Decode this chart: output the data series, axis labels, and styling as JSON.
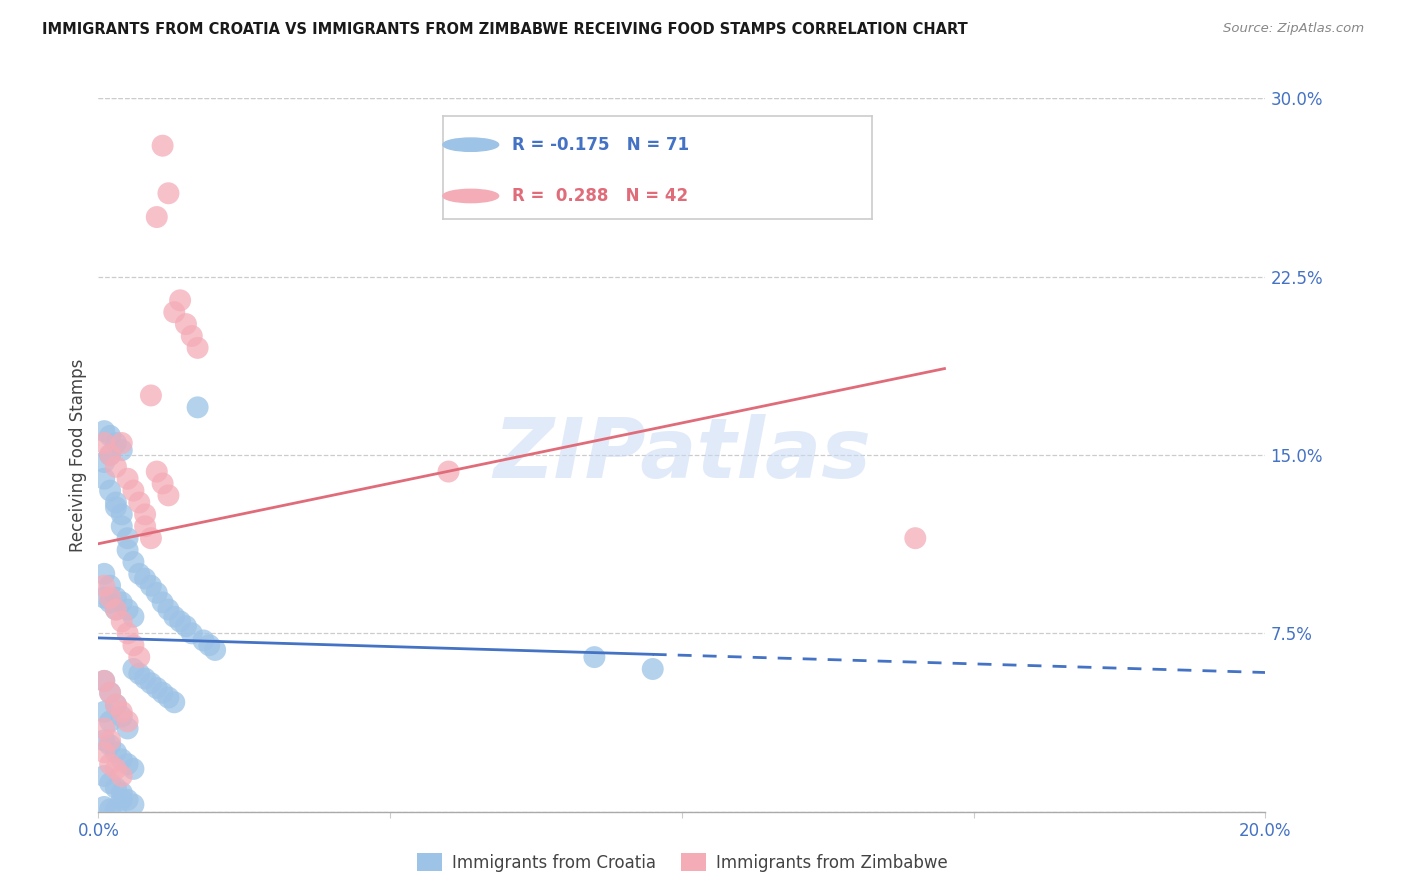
{
  "title": "IMMIGRANTS FROM CROATIA VS IMMIGRANTS FROM ZIMBABWE RECEIVING FOOD STAMPS CORRELATION CHART",
  "source": "Source: ZipAtlas.com",
  "ylabel": "Receiving Food Stamps",
  "xlim": [
    0.0,
    0.2
  ],
  "ylim": [
    0.0,
    0.3
  ],
  "xticks": [
    0.0,
    0.05,
    0.1,
    0.15,
    0.2
  ],
  "yticks": [
    0.0,
    0.075,
    0.15,
    0.225,
    0.3
  ],
  "ytick_labels": [
    "",
    "7.5%",
    "15.0%",
    "22.5%",
    "30.0%"
  ],
  "xtick_labels": [
    "0.0%",
    "",
    "",
    "",
    "20.0%"
  ],
  "legend_label1": "Immigrants from Croatia",
  "legend_label2": "Immigrants from Zimbabwe",
  "r_croatia": -0.175,
  "n_croatia": 71,
  "r_zimbabwe": 0.288,
  "n_zimbabwe": 42,
  "axis_color": "#4472c4",
  "croatia_color": "#9dc3e6",
  "zimbabwe_color": "#f4acb7",
  "croatia_line_color": "#4472c4",
  "zimbabwe_line_color": "#e06c7a",
  "watermark": "ZIPatlas",
  "croatia_points": [
    [
      0.001,
      0.147
    ],
    [
      0.002,
      0.15
    ],
    [
      0.003,
      0.128
    ],
    [
      0.004,
      0.12
    ],
    [
      0.005,
      0.11
    ],
    [
      0.006,
      0.105
    ],
    [
      0.007,
      0.1
    ],
    [
      0.008,
      0.098
    ],
    [
      0.009,
      0.095
    ],
    [
      0.01,
      0.092
    ],
    [
      0.011,
      0.088
    ],
    [
      0.012,
      0.085
    ],
    [
      0.013,
      0.082
    ],
    [
      0.014,
      0.08
    ],
    [
      0.015,
      0.078
    ],
    [
      0.016,
      0.075
    ],
    [
      0.017,
      0.17
    ],
    [
      0.018,
      0.072
    ],
    [
      0.019,
      0.07
    ],
    [
      0.02,
      0.068
    ],
    [
      0.001,
      0.14
    ],
    [
      0.002,
      0.135
    ],
    [
      0.003,
      0.13
    ],
    [
      0.004,
      0.125
    ],
    [
      0.005,
      0.115
    ],
    [
      0.001,
      0.09
    ],
    [
      0.002,
      0.088
    ],
    [
      0.003,
      0.085
    ],
    [
      0.001,
      0.055
    ],
    [
      0.002,
      0.05
    ],
    [
      0.003,
      0.045
    ],
    [
      0.004,
      0.04
    ],
    [
      0.005,
      0.035
    ],
    [
      0.001,
      0.03
    ],
    [
      0.002,
      0.028
    ],
    [
      0.003,
      0.025
    ],
    [
      0.004,
      0.022
    ],
    [
      0.005,
      0.02
    ],
    [
      0.006,
      0.018
    ],
    [
      0.001,
      0.015
    ],
    [
      0.002,
      0.012
    ],
    [
      0.003,
      0.01
    ],
    [
      0.004,
      0.008
    ],
    [
      0.005,
      0.005
    ],
    [
      0.001,
      0.16
    ],
    [
      0.002,
      0.158
    ],
    [
      0.003,
      0.155
    ],
    [
      0.004,
      0.152
    ],
    [
      0.006,
      0.06
    ],
    [
      0.007,
      0.058
    ],
    [
      0.008,
      0.056
    ],
    [
      0.009,
      0.054
    ],
    [
      0.01,
      0.052
    ],
    [
      0.011,
      0.05
    ],
    [
      0.012,
      0.048
    ],
    [
      0.013,
      0.046
    ],
    [
      0.001,
      0.042
    ],
    [
      0.002,
      0.038
    ],
    [
      0.001,
      0.1
    ],
    [
      0.002,
      0.095
    ],
    [
      0.003,
      0.09
    ],
    [
      0.004,
      0.088
    ],
    [
      0.005,
      0.085
    ],
    [
      0.006,
      0.082
    ],
    [
      0.085,
      0.065
    ],
    [
      0.095,
      0.06
    ],
    [
      0.001,
      0.002
    ],
    [
      0.002,
      0.001
    ],
    [
      0.003,
      0.001
    ],
    [
      0.004,
      0.005
    ],
    [
      0.006,
      0.003
    ]
  ],
  "zimbabwe_points": [
    [
      0.001,
      0.155
    ],
    [
      0.002,
      0.15
    ],
    [
      0.003,
      0.145
    ],
    [
      0.004,
      0.155
    ],
    [
      0.005,
      0.14
    ],
    [
      0.006,
      0.135
    ],
    [
      0.007,
      0.13
    ],
    [
      0.008,
      0.125
    ],
    [
      0.009,
      0.175
    ],
    [
      0.01,
      0.25
    ],
    [
      0.011,
      0.28
    ],
    [
      0.012,
      0.26
    ],
    [
      0.013,
      0.21
    ],
    [
      0.014,
      0.215
    ],
    [
      0.015,
      0.205
    ],
    [
      0.016,
      0.2
    ],
    [
      0.017,
      0.195
    ],
    [
      0.001,
      0.095
    ],
    [
      0.002,
      0.09
    ],
    [
      0.003,
      0.085
    ],
    [
      0.004,
      0.08
    ],
    [
      0.005,
      0.075
    ],
    [
      0.006,
      0.07
    ],
    [
      0.007,
      0.065
    ],
    [
      0.008,
      0.12
    ],
    [
      0.009,
      0.115
    ],
    [
      0.01,
      0.143
    ],
    [
      0.011,
      0.138
    ],
    [
      0.012,
      0.133
    ],
    [
      0.001,
      0.055
    ],
    [
      0.002,
      0.05
    ],
    [
      0.003,
      0.045
    ],
    [
      0.004,
      0.042
    ],
    [
      0.005,
      0.038
    ],
    [
      0.001,
      0.035
    ],
    [
      0.002,
      0.03
    ],
    [
      0.14,
      0.115
    ],
    [
      0.06,
      0.143
    ],
    [
      0.001,
      0.025
    ],
    [
      0.002,
      0.02
    ],
    [
      0.003,
      0.018
    ],
    [
      0.004,
      0.015
    ]
  ]
}
